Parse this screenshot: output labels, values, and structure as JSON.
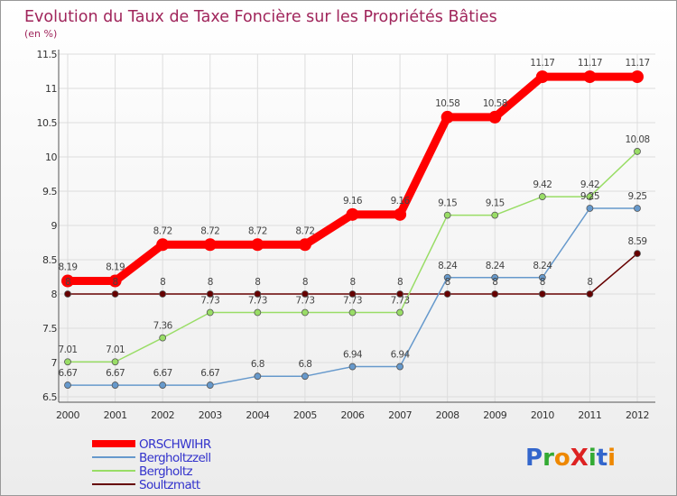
{
  "chart_data": {
    "type": "line",
    "title": "Evolution du Taux de Taxe Foncière sur les Propriétés Bâties",
    "subtitle": "(en %)",
    "x": [
      "2000",
      "2001",
      "2002",
      "2003",
      "2004",
      "2005",
      "2006",
      "2007",
      "2008",
      "2009",
      "2010",
      "2011",
      "2012"
    ],
    "ylim": [
      6.5,
      11.5
    ],
    "yticks": [
      "6.5",
      "7",
      "7.5",
      "8",
      "8.5",
      "9",
      "9.5",
      "10",
      "10.5",
      "11",
      "11.5"
    ],
    "grid": true,
    "series": [
      {
        "name": "ORSCHWIHR",
        "color": "#ff0000",
        "values": [
          8.19,
          8.19,
          8.72,
          8.72,
          8.72,
          8.72,
          9.16,
          9.16,
          10.58,
          10.58,
          11.17,
          11.17,
          11.17
        ],
        "labels": [
          "8.19",
          "8.19",
          "8.72",
          "8.72",
          "8.72",
          "8.72",
          "9.16",
          "9.16",
          "10.58",
          "10.58",
          "11.17",
          "11.17",
          "11.17"
        ]
      },
      {
        "name": "Bergholtzzell",
        "color": "#6699cc",
        "values": [
          6.67,
          6.67,
          6.67,
          6.67,
          6.8,
          6.8,
          6.94,
          6.94,
          8.24,
          8.24,
          8.24,
          9.25,
          9.25
        ],
        "labels": [
          "6.67",
          "6.67",
          "6.67",
          "6.67",
          "6.8",
          "6.8",
          "6.94",
          "6.94",
          "8.24",
          "8.24",
          "8.24",
          "9.25",
          "9.25"
        ]
      },
      {
        "name": "Bergholtz",
        "color": "#99dd66",
        "values": [
          7.01,
          7.01,
          7.36,
          7.73,
          7.73,
          7.73,
          7.73,
          7.73,
          9.15,
          9.15,
          9.42,
          9.42,
          10.08
        ],
        "labels": [
          "7.01",
          "7.01",
          "7.36",
          "7.73",
          "7.73",
          "7.73",
          "7.73",
          "7.73",
          "9.15",
          "9.15",
          "9.42",
          "9.42",
          "10.08"
        ]
      },
      {
        "name": "Soultzmatt",
        "color": "#660000",
        "values": [
          8,
          8,
          8,
          8,
          8,
          8,
          8,
          8,
          8,
          8,
          8,
          8,
          8.59
        ],
        "labels": [
          "8",
          "8",
          "8",
          "8",
          "8",
          "8",
          "8",
          "8",
          "8",
          "8",
          "8",
          "8",
          "8.59"
        ]
      }
    ]
  },
  "logo": {
    "text": "ProXiti"
  },
  "colors": {
    "title": "#a0255b",
    "legend_text": "#3333cc"
  }
}
